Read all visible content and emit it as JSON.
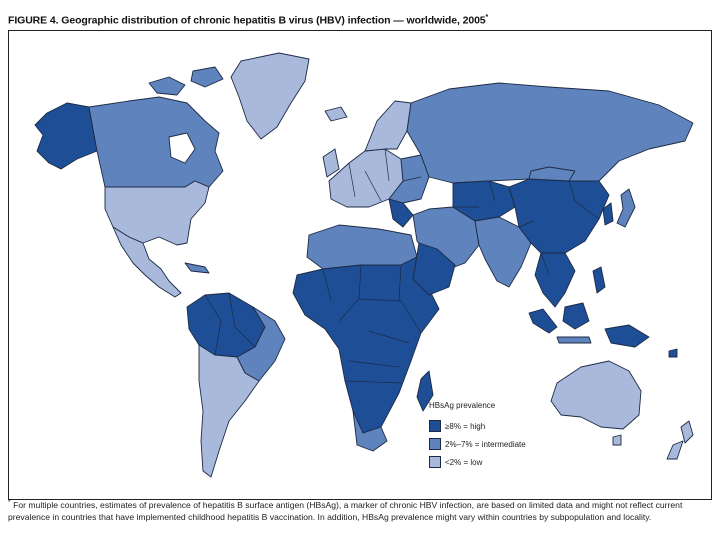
{
  "figure": {
    "title": "FIGURE 4. Geographic distribution of chronic hepatitis B virus (HBV) infection — worldwide, 2005",
    "title_marker": "*"
  },
  "legend": {
    "title": "HBsAg prevalence",
    "items": [
      {
        "label": "≥8% = high",
        "color": "#1e4f96"
      },
      {
        "label": "2%–7% = intermediate",
        "color": "#5f84bd"
      },
      {
        "label": "<2% = low",
        "color": "#a9b9dc"
      }
    ]
  },
  "footnote": {
    "marker": "*",
    "text": "For multiple countries, estimates of prevalence of hepatitis B surface antigen (HBsAg), a marker of chronic HBV infection, are based on limited data and might not reflect current prevalence in countries that have implemented childhood hepatitis B vaccination. In addition, HBsAg prevalence might vary within countries by subpopulation and locality."
  },
  "colors": {
    "high": "#1e4f96",
    "intermediate": "#5f84bd",
    "low": "#a9b9dc",
    "outline": "#1c2a44"
  }
}
